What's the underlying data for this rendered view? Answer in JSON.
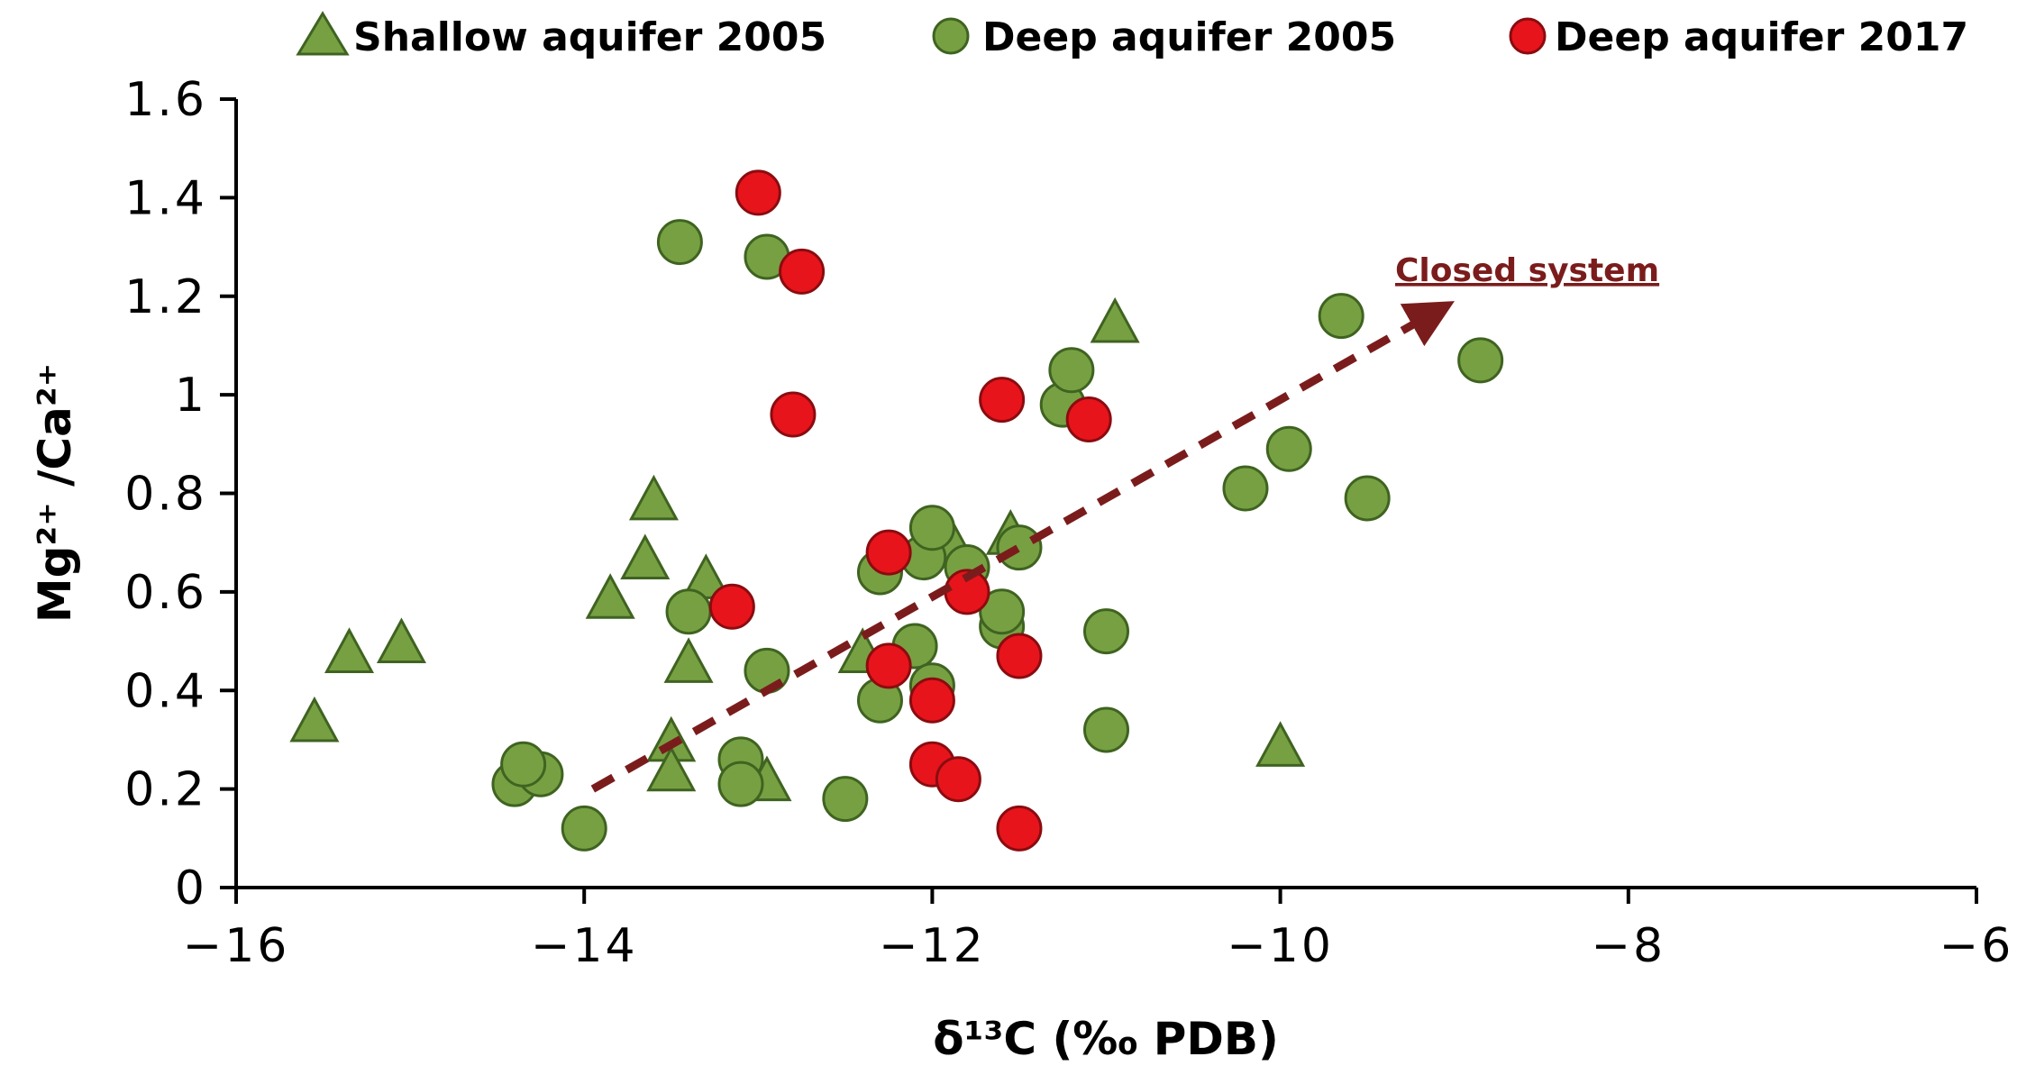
{
  "chart_data": {
    "type": "scatter",
    "title": "",
    "xlabel": "δ¹³C (‰ PDB)",
    "ylabel": "Mg²⁺ /Ca²⁺",
    "xlim": [
      -16,
      -6
    ],
    "ylim": [
      0,
      1.6
    ],
    "x_ticks": [
      "−16",
      "−14",
      "−12",
      "−10",
      "−8",
      "−6"
    ],
    "x_tick_values": [
      -16,
      -14,
      -12,
      -10,
      -8,
      -6
    ],
    "y_ticks": [
      "0",
      "0.2",
      "0.4",
      "0.6",
      "0.8",
      "1",
      "1.2",
      "1.4",
      "1.6"
    ],
    "y_tick_values": [
      0,
      0.2,
      0.4,
      0.6,
      0.8,
      1.0,
      1.2,
      1.4,
      1.6
    ],
    "grid": false,
    "legend_position": "top",
    "series": [
      {
        "name": "Shallow aquifer 2005",
        "marker": "triangle",
        "color": "#77a043",
        "stroke": "#3f6320",
        "points": [
          [
            -15.55,
            0.33
          ],
          [
            -15.35,
            0.47
          ],
          [
            -15.05,
            0.49
          ],
          [
            -13.85,
            0.58
          ],
          [
            -13.6,
            0.78
          ],
          [
            -13.65,
            0.66
          ],
          [
            -13.3,
            0.62
          ],
          [
            -13.4,
            0.45
          ],
          [
            -13.5,
            0.29
          ],
          [
            -13.5,
            0.23
          ],
          [
            -12.95,
            0.21
          ],
          [
            -12.4,
            0.47
          ],
          [
            -11.9,
            0.7
          ],
          [
            -11.55,
            0.71
          ],
          [
            -10.95,
            1.14
          ],
          [
            -10.0,
            0.28
          ]
        ]
      },
      {
        "name": "Deep aquifer 2005",
        "marker": "circle",
        "color": "#77a043",
        "stroke": "#3f6320",
        "points": [
          [
            -14.4,
            0.21
          ],
          [
            -14.25,
            0.23
          ],
          [
            -14.35,
            0.25
          ],
          [
            -14.0,
            0.12
          ],
          [
            -13.45,
            1.31
          ],
          [
            -13.4,
            0.56
          ],
          [
            -13.1,
            0.26
          ],
          [
            -13.1,
            0.21
          ],
          [
            -12.95,
            0.44
          ],
          [
            -12.95,
            1.28
          ],
          [
            -12.5,
            0.18
          ],
          [
            -12.3,
            0.64
          ],
          [
            -12.3,
            0.38
          ],
          [
            -12.1,
            0.49
          ],
          [
            -12.05,
            0.67
          ],
          [
            -12.0,
            0.73
          ],
          [
            -12.0,
            0.41
          ],
          [
            -11.8,
            0.65
          ],
          [
            -11.6,
            0.53
          ],
          [
            -11.6,
            0.56
          ],
          [
            -11.5,
            0.69
          ],
          [
            -11.25,
            0.98
          ],
          [
            -11.2,
            1.05
          ],
          [
            -11.0,
            0.52
          ],
          [
            -11.0,
            0.32
          ],
          [
            -10.2,
            0.81
          ],
          [
            -9.95,
            0.89
          ],
          [
            -9.65,
            1.16
          ],
          [
            -9.5,
            0.79
          ],
          [
            -8.85,
            1.07
          ]
        ]
      },
      {
        "name": "Deep aquifer 2017",
        "marker": "circle",
        "color": "#e8141b",
        "stroke": "#8a0c10",
        "points": [
          [
            -13.15,
            0.57
          ],
          [
            -13.0,
            1.41
          ],
          [
            -12.75,
            1.25
          ],
          [
            -12.8,
            0.96
          ],
          [
            -12.25,
            0.68
          ],
          [
            -12.25,
            0.45
          ],
          [
            -12.0,
            0.38
          ],
          [
            -12.0,
            0.25
          ],
          [
            -11.85,
            0.22
          ],
          [
            -11.8,
            0.6
          ],
          [
            -11.6,
            0.99
          ],
          [
            -11.5,
            0.47
          ],
          [
            -11.5,
            0.12
          ],
          [
            -11.1,
            0.95
          ]
        ]
      }
    ],
    "annotation": {
      "text": "Closed system",
      "color": "#7b1c1c",
      "arrow_from": [
        -13.95,
        0.2
      ],
      "arrow_to": [
        -9.1,
        1.17
      ],
      "arrow_style": "dashed"
    }
  }
}
